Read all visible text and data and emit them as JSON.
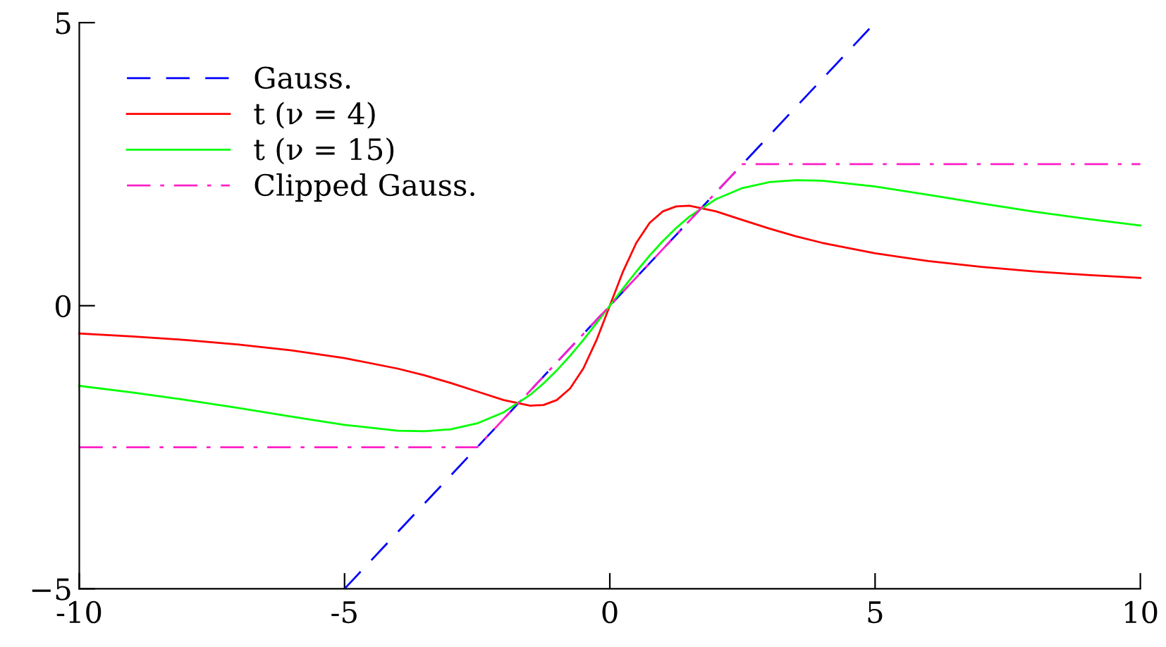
{
  "chart_data": {
    "type": "line",
    "xlim": [
      -10,
      10
    ],
    "ylim": [
      -5,
      5
    ],
    "xticks": [
      {
        "value": -10,
        "label": "-10"
      },
      {
        "value": -5,
        "label": "-5"
      },
      0,
      5,
      10
    ],
    "yticks": [
      {
        "value": -5,
        "label": "−5"
      },
      0,
      5
    ],
    "grid": false,
    "legend": "top left",
    "marker": "none",
    "series": [
      {
        "name": "Gauss.",
        "color": "#0000ff",
        "line_style": "dashed",
        "x": [
          -5,
          5
        ],
        "values": [
          -5,
          5
        ]
      },
      {
        "name": "t (ν = 4)",
        "color": "#ff0000",
        "line_style": "solid",
        "x": [
          -10,
          -9,
          -8,
          -7,
          -6,
          -5,
          -4,
          -3.5,
          -3,
          -2.5,
          -2,
          -1.5,
          -1.25,
          -1,
          -0.75,
          -0.5,
          -0.25,
          0,
          0.25,
          0.5,
          0.75,
          1,
          1.25,
          1.5,
          2,
          2.5,
          3,
          3.5,
          4,
          5,
          6,
          7,
          8,
          9,
          10
        ],
        "values": [
          -0.49,
          -0.542,
          -0.606,
          -0.686,
          -0.789,
          -0.926,
          -1.111,
          -1.228,
          -1.364,
          -1.515,
          -1.667,
          -1.765,
          -1.754,
          -1.667,
          -1.463,
          -1.111,
          -0.606,
          0,
          0.606,
          1.111,
          1.463,
          1.667,
          1.754,
          1.765,
          1.667,
          1.515,
          1.364,
          1.228,
          1.111,
          0.926,
          0.789,
          0.686,
          0.606,
          0.542,
          0.49
        ]
      },
      {
        "name": "t (ν = 15)",
        "color": "#00ff00",
        "line_style": "solid",
        "x": [
          -10,
          -9,
          -8,
          -7,
          -6,
          -5,
          -4,
          -3.5,
          -3,
          -2.5,
          -2,
          -1.5,
          -1.25,
          -1,
          -0.75,
          -0.5,
          -0.25,
          0,
          0.25,
          0.5,
          0.75,
          1,
          1.25,
          1.5,
          2,
          2.5,
          3,
          3.5,
          4,
          5,
          6,
          7,
          8,
          9,
          10
        ],
        "values": [
          -1.416,
          -1.532,
          -1.662,
          -1.806,
          -1.959,
          -2.105,
          -2.207,
          -2.218,
          -2.182,
          -2.078,
          -1.882,
          -1.574,
          -1.373,
          -1.143,
          -0.885,
          -0.604,
          -0.306,
          0,
          0.306,
          0.604,
          0.885,
          1.143,
          1.373,
          1.574,
          1.882,
          2.078,
          2.182,
          2.218,
          2.207,
          2.105,
          1.959,
          1.806,
          1.662,
          1.532,
          1.416
        ]
      },
      {
        "name": "Clipped Gauss.",
        "color": "#ff20c8",
        "line_style": "dashdot",
        "x": [
          -10,
          -2.5,
          2.5,
          10
        ],
        "values": [
          -2.5,
          -2.5,
          2.5,
          2.5
        ]
      }
    ]
  }
}
